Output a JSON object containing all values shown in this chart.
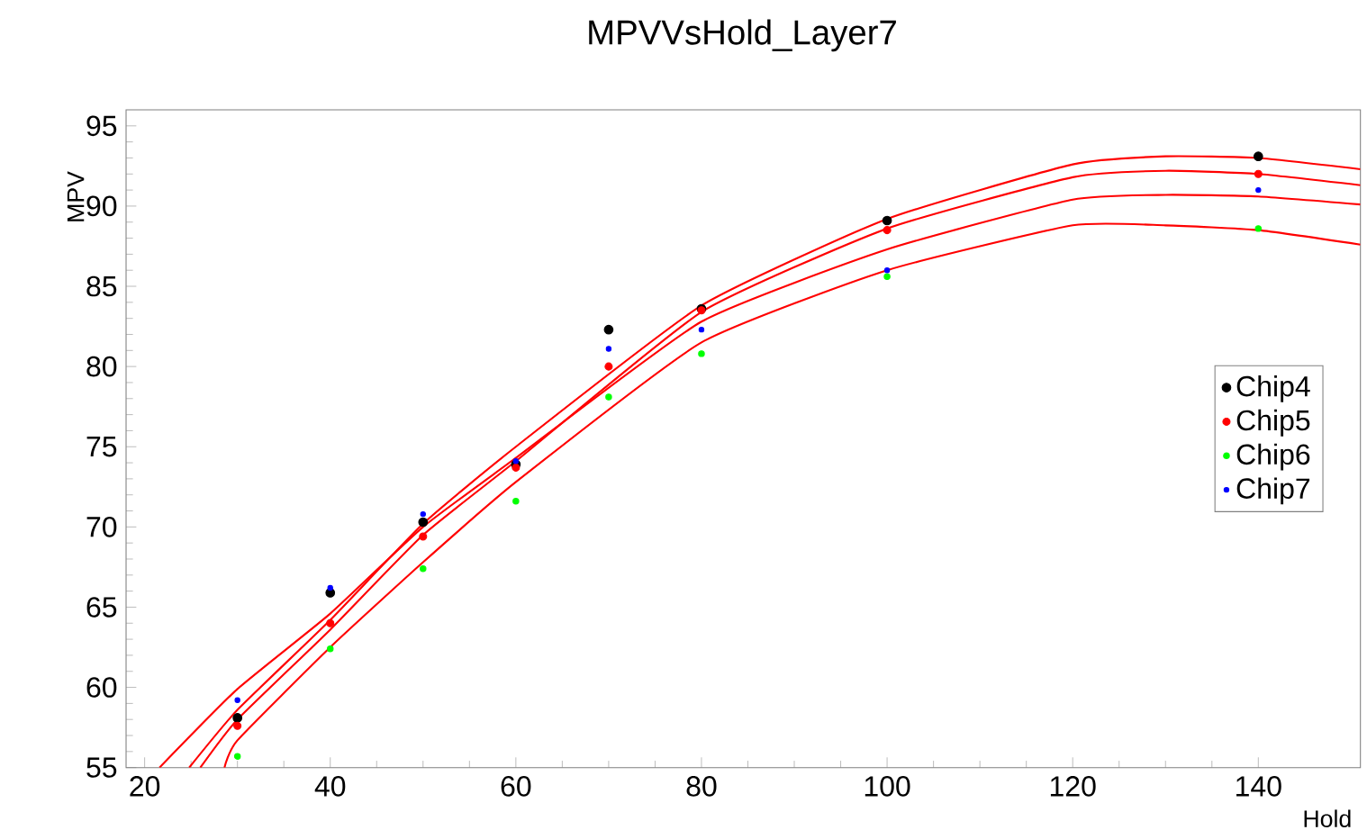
{
  "chart_data": {
    "type": "scatter",
    "title": "MPVVsHold_Layer7",
    "xlabel": "Hold",
    "ylabel": "MPV",
    "xlim": [
      18,
      151
    ],
    "ylim": [
      55,
      96
    ],
    "xticks": [
      20,
      40,
      60,
      80,
      100,
      120,
      140
    ],
    "yticks": [
      55,
      60,
      65,
      70,
      75,
      80,
      85,
      90,
      95
    ],
    "grid": false,
    "legend": "right",
    "marker": "circle",
    "series": [
      {
        "name": "Chip4",
        "color": "#000000",
        "x": [
          30,
          40,
          50,
          60,
          70,
          80,
          100,
          140
        ],
        "values": [
          58.1,
          65.9,
          70.3,
          73.9,
          82.3,
          83.6,
          89.1,
          93.1
        ]
      },
      {
        "name": "Chip5",
        "color": "#ff0000",
        "x": [
          30,
          40,
          50,
          60,
          70,
          80,
          100,
          140
        ],
        "values": [
          57.6,
          64.0,
          69.4,
          73.7,
          80.0,
          83.5,
          88.5,
          92.0
        ]
      },
      {
        "name": "Chip6",
        "color": "#00ff00",
        "x": [
          30,
          40,
          50,
          60,
          70,
          80,
          100,
          140
        ],
        "values": [
          55.7,
          62.4,
          67.4,
          71.6,
          78.1,
          80.8,
          85.6,
          88.6
        ]
      },
      {
        "name": "Chip7",
        "color": "#0000ff",
        "x": [
          30,
          40,
          50,
          60,
          70,
          80,
          100,
          140
        ],
        "values": [
          59.2,
          66.2,
          70.8,
          74.1,
          81.1,
          82.3,
          86.0,
          91.0
        ]
      },
      {
        "type": "line",
        "color": "#ff0000",
        "marker": "none",
        "x": [
          24.8,
          30,
          40,
          50,
          60,
          80,
          100,
          120,
          130,
          140,
          151
        ],
        "values": [
          55,
          58.6,
          64.2,
          70.2,
          75.0,
          83.8,
          89.2,
          92.6,
          93.1,
          93.0,
          92.3
        ]
      },
      {
        "type": "line",
        "color": "#ff0000",
        "marker": "none",
        "x": [
          26.0,
          30,
          40,
          50,
          60,
          80,
          100,
          120,
          130,
          140,
          151
        ],
        "values": [
          55,
          58.0,
          63.6,
          69.5,
          74.1,
          83.4,
          88.6,
          91.8,
          92.2,
          92.0,
          91.3
        ]
      },
      {
        "type": "line",
        "color": "#ff0000",
        "marker": "none",
        "x": [
          28.6,
          30,
          40,
          50,
          60,
          80,
          100,
          120,
          130,
          140,
          151
        ],
        "values": [
          55,
          56.7,
          62.5,
          67.8,
          72.8,
          81.5,
          86.0,
          88.8,
          88.8,
          88.5,
          87.6
        ]
      },
      {
        "type": "line",
        "color": "#ff0000",
        "marker": "none",
        "x": [
          21.6,
          30,
          40,
          50,
          60,
          80,
          100,
          120,
          130,
          140,
          151
        ],
        "values": [
          55,
          59.9,
          64.6,
          70.0,
          74.3,
          82.8,
          87.3,
          90.4,
          90.7,
          90.6,
          90.1
        ]
      }
    ]
  }
}
